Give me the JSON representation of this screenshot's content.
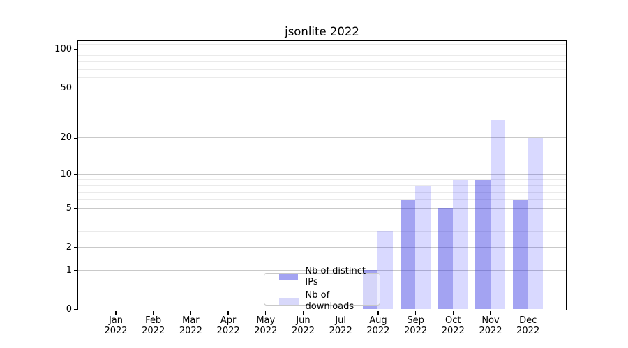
{
  "chart_data": {
    "type": "bar",
    "title": "jsonlite 2022",
    "categories": [
      "Jan 2022",
      "Feb 2022",
      "Mar 2022",
      "Apr 2022",
      "May 2022",
      "Jun 2022",
      "Jul 2022",
      "Aug 2022",
      "Sep 2022",
      "Oct 2022",
      "Nov 2022",
      "Dec 2022"
    ],
    "series": [
      {
        "name": "Nb of distinct IPs",
        "color": "#a3a3f2",
        "fill": "rgba(51,51,227,0.45)",
        "values": [
          0,
          0,
          0,
          0,
          0,
          0,
          0,
          1,
          6,
          5,
          9,
          6
        ]
      },
      {
        "name": "Nb of downloads",
        "color": "#d8d8fa",
        "fill": "rgba(0,0,255,0.15)",
        "values": [
          0,
          0,
          0,
          0,
          0,
          0,
          0,
          3,
          8,
          9,
          28,
          20
        ]
      }
    ],
    "xlabel": "",
    "ylabel": "",
    "y_axis": {
      "scale": "log1p",
      "ticks": [
        100,
        50,
        20,
        10,
        5,
        2,
        1,
        0
      ],
      "minor_gridlines": [
        3,
        4,
        6,
        7,
        8,
        9,
        30,
        40,
        60,
        70,
        80,
        90,
        110
      ],
      "ylim": [
        0,
        117
      ]
    },
    "grid": "horizontal, major and minor, on",
    "legend": {
      "position": "inside lower-center",
      "entries": [
        "Nb of distinct IPs",
        "Nb of downloads"
      ]
    },
    "colors": {
      "grid_major": "#c9c9c9",
      "grid_minor": "#eaeaea",
      "axis": "#000000",
      "text": "#000000",
      "background": "#ffffff"
    }
  }
}
